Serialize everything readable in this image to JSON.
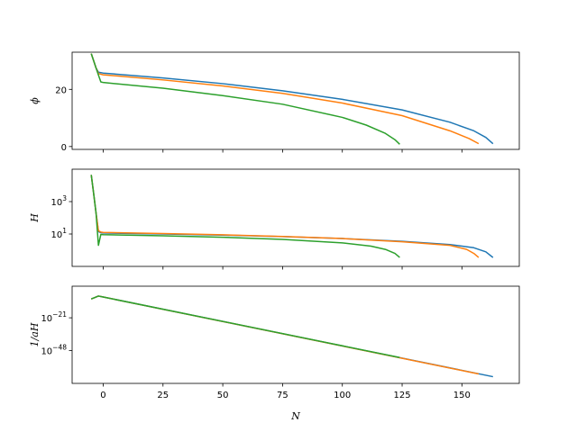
{
  "chart_data": [
    {
      "type": "line",
      "id": "phi",
      "ylabel": "ϕ",
      "xlabel": "",
      "xlim": [
        -13,
        174
      ],
      "ylim": [
        -1,
        33
      ],
      "yscale": "linear",
      "yticks": [
        {
          "v": 0,
          "label": "0"
        },
        {
          "v": 20,
          "label": "20"
        }
      ],
      "series": [
        {
          "color": "#1f77b4",
          "points": [
            [
              -5,
              32.5
            ],
            [
              -4,
              30
            ],
            [
              -3,
              27.5
            ],
            [
              -2,
              26
            ],
            [
              0,
              25.7
            ],
            [
              25,
              24
            ],
            [
              50,
              22
            ],
            [
              75,
              19.5
            ],
            [
              100,
              16.5
            ],
            [
              125,
              12.8
            ],
            [
              145,
              8.5
            ],
            [
              155,
              5.5
            ],
            [
              160,
              3.2
            ],
            [
              163,
              1
            ]
          ]
        },
        {
          "color": "#ff7f0e",
          "points": [
            [
              -5,
              32.5
            ],
            [
              -4,
              30
            ],
            [
              -3,
              27.5
            ],
            [
              -2,
              25.5
            ],
            [
              0,
              25.1
            ],
            [
              25,
              23.3
            ],
            [
              50,
              21.2
            ],
            [
              75,
              18.6
            ],
            [
              100,
              15.2
            ],
            [
              125,
              10.8
            ],
            [
              145,
              5.5
            ],
            [
              153,
              2.8
            ],
            [
              157,
              1
            ]
          ]
        },
        {
          "color": "#2ca02c",
          "points": [
            [
              -5,
              32.5
            ],
            [
              -4,
              30
            ],
            [
              -3,
              27.5
            ],
            [
              -2,
              25
            ],
            [
              -1,
              22.6
            ],
            [
              0,
              22.4
            ],
            [
              25,
              20.4
            ],
            [
              50,
              17.8
            ],
            [
              75,
              14.8
            ],
            [
              100,
              10.2
            ],
            [
              110,
              7.5
            ],
            [
              118,
              4.6
            ],
            [
              122,
              2.4
            ],
            [
              124,
              0.8
            ]
          ]
        }
      ]
    },
    {
      "type": "line",
      "id": "H",
      "ylabel": "H",
      "xlabel": "",
      "xlim": [
        -13,
        174
      ],
      "ylim": [
        -1.0,
        5.0
      ],
      "yscale": "log10",
      "yticks": [
        {
          "v": 1,
          "base": "10",
          "exp": "1"
        },
        {
          "v": 3,
          "base": "10",
          "exp": "3"
        }
      ],
      "series": [
        {
          "color": "#1f77b4",
          "points": [
            [
              -5,
              4.65
            ],
            [
              -4,
              3.5
            ],
            [
              -3,
              2.3
            ],
            [
              -2,
              1.15
            ],
            [
              -1,
              1.08
            ],
            [
              0,
              1.06
            ],
            [
              25,
              1.0
            ],
            [
              50,
              0.93
            ],
            [
              75,
              0.84
            ],
            [
              100,
              0.72
            ],
            [
              125,
              0.55
            ],
            [
              145,
              0.35
            ],
            [
              155,
              0.15
            ],
            [
              160,
              -0.1
            ],
            [
              163,
              -0.45
            ]
          ]
        },
        {
          "color": "#ff7f0e",
          "points": [
            [
              -5,
              4.65
            ],
            [
              -4,
              3.5
            ],
            [
              -3,
              2.3
            ],
            [
              -2,
              1.2
            ],
            [
              -1,
              1.12
            ],
            [
              0,
              1.1
            ],
            [
              25,
              1.03
            ],
            [
              50,
              0.95
            ],
            [
              75,
              0.85
            ],
            [
              100,
              0.72
            ],
            [
              125,
              0.52
            ],
            [
              145,
              0.3
            ],
            [
              152,
              0.05
            ],
            [
              155,
              -0.2
            ],
            [
              157,
              -0.45
            ]
          ]
        },
        {
          "color": "#2ca02c",
          "points": [
            [
              -5,
              4.65
            ],
            [
              -4,
              3.5
            ],
            [
              -3,
              2.3
            ],
            [
              -2,
              0.3
            ],
            [
              -1,
              0.97
            ],
            [
              0,
              0.96
            ],
            [
              25,
              0.89
            ],
            [
              50,
              0.8
            ],
            [
              75,
              0.67
            ],
            [
              100,
              0.45
            ],
            [
              112,
              0.25
            ],
            [
              118,
              0.05
            ],
            [
              122,
              -0.2
            ],
            [
              124,
              -0.45
            ]
          ]
        }
      ]
    },
    {
      "type": "line",
      "id": "inv_aH",
      "ylabel": "1/aH",
      "xlabel": "N",
      "xlim": [
        -13,
        174
      ],
      "ylim": [
        -75,
        5
      ],
      "yscale": "log10",
      "yticks": [
        {
          "v": -21,
          "base": "10",
          "exp": "−21"
        },
        {
          "v": -48,
          "base": "10",
          "exp": "−48"
        }
      ],
      "xticks": [
        {
          "v": 0,
          "label": "0"
        },
        {
          "v": 25,
          "label": "25"
        },
        {
          "v": 50,
          "label": "50"
        },
        {
          "v": 75,
          "label": "75"
        },
        {
          "v": 100,
          "label": "100"
        },
        {
          "v": 125,
          "label": "125"
        },
        {
          "v": 150,
          "label": "150"
        }
      ],
      "series": [
        {
          "color": "#1f77b4",
          "points": [
            [
              -5,
              -5.5
            ],
            [
              -2,
              -3.1
            ],
            [
              0,
              -3.9
            ],
            [
              163,
              -69.5
            ]
          ]
        },
        {
          "color": "#ff7f0e",
          "points": [
            [
              -5,
              -5.5
            ],
            [
              -2,
              -3.1
            ],
            [
              0,
              -3.9
            ],
            [
              157,
              -67.2
            ]
          ]
        },
        {
          "color": "#2ca02c",
          "points": [
            [
              -5,
              -5.5
            ],
            [
              -2,
              -3.1
            ],
            [
              0,
              -3.9
            ],
            [
              124,
              -53.7
            ]
          ]
        }
      ]
    }
  ]
}
